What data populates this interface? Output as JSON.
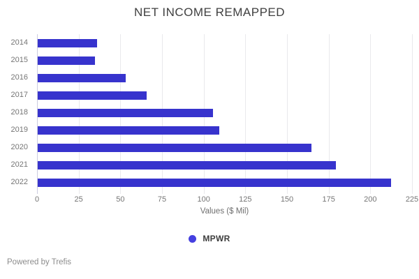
{
  "header": {
    "title": "NET INCOME REMAPPED"
  },
  "chart_data": {
    "type": "bar",
    "orientation": "horizontal",
    "title": "NET INCOME REMAPPED",
    "categories": [
      "2014",
      "2015",
      "2016",
      "2017",
      "2018",
      "2019",
      "2020",
      "2021",
      "2022"
    ],
    "series": [
      {
        "name": "MPWR",
        "values": [
          35.5,
          34.4,
          52.9,
          65.2,
          105.3,
          108.8,
          164.4,
          178.9,
          211.9
        ],
        "color": "#3733cd"
      }
    ],
    "xlabel": "Values ($ Mil)",
    "ylabel": "",
    "xlim": [
      0,
      225
    ],
    "xticks": [
      0,
      25,
      50,
      75,
      100,
      125,
      150,
      175,
      200,
      225
    ],
    "grid": true,
    "legend_position": "bottom"
  },
  "legend": {
    "dot_color": "#4540e0"
  },
  "footer": {
    "text": "Powered by Trefis"
  },
  "colors": {
    "bar": "#3733cd",
    "gridline": "#e9e9ec",
    "axis_line": "#ccccdf",
    "tick_text": "#757575",
    "title_text": "#404040"
  }
}
